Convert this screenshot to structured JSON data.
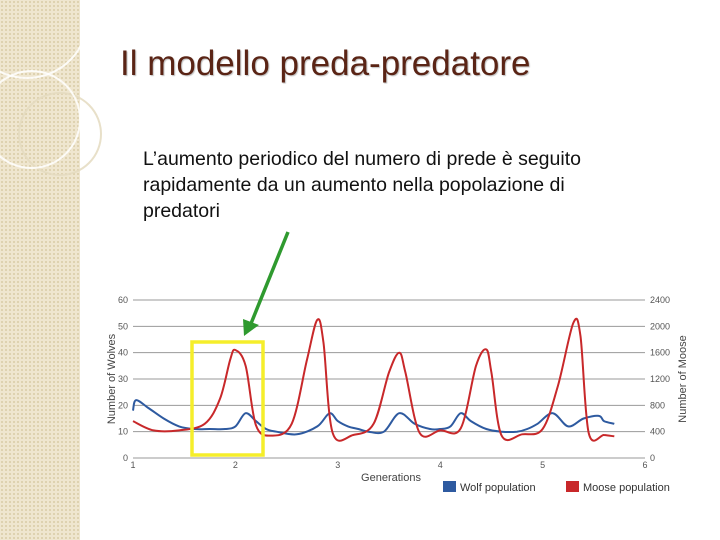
{
  "slide": {
    "title": "Il modello preda-predatore",
    "text": "L’aumento periodico del numero di prede è seguito rapidamente da un aumento nella popolazione di predatori"
  },
  "colors": {
    "wolf": "#2e5aa0",
    "moose": "#c8282a",
    "highlight": "#f5ee2a",
    "arrow": "#2f9a2f",
    "title": "#5a2415"
  },
  "chart_data": {
    "type": "line",
    "xlabel": "Generations",
    "ylabel_left": "Number of Wolves",
    "ylabel_right": "Number of Moose",
    "xlim": [
      1,
      6
    ],
    "ylim_left": [
      0,
      60
    ],
    "ylim_right": [
      0,
      2400
    ],
    "x_ticks": [
      "1",
      "2",
      "3",
      "4",
      "5",
      "6"
    ],
    "y_ticks_left": [
      "0",
      "10",
      "20",
      "30",
      "40",
      "50",
      "60"
    ],
    "y_ticks_right": [
      "0",
      "400",
      "800",
      "1200",
      "1600",
      "2000",
      "2400"
    ],
    "grid": true,
    "legend_position": "bottom-right",
    "series": [
      {
        "name": "Wolf population",
        "axis": "left",
        "x": [
          1.0,
          1.03,
          1.15,
          1.3,
          1.45,
          1.6,
          1.75,
          1.9,
          2.0,
          2.1,
          2.2,
          2.3,
          2.4,
          2.6,
          2.8,
          2.92,
          3.0,
          3.1,
          3.2,
          3.3,
          3.45,
          3.6,
          3.75,
          3.9,
          4.0,
          4.1,
          4.2,
          4.3,
          4.45,
          4.6,
          4.75,
          4.85,
          4.95,
          5.1,
          5.25,
          5.4,
          5.55,
          5.6,
          5.7
        ],
        "values": [
          18,
          22,
          19,
          15,
          12,
          11,
          11,
          11,
          12,
          17,
          14,
          11,
          10,
          9,
          12,
          17,
          14,
          12,
          11,
          10,
          10,
          17,
          13,
          11,
          11,
          12,
          17,
          14,
          11,
          10,
          10,
          11,
          13,
          17,
          12,
          15,
          16,
          14,
          13
        ]
      },
      {
        "name": "Moose population",
        "axis": "right",
        "x": [
          1.0,
          1.2,
          1.45,
          1.7,
          1.85,
          1.95,
          2.0,
          2.1,
          2.2,
          2.35,
          2.55,
          2.7,
          2.8,
          2.86,
          2.95,
          3.15,
          3.35,
          3.5,
          3.6,
          3.66,
          3.8,
          4.0,
          4.2,
          4.35,
          4.45,
          4.5,
          4.6,
          4.8,
          5.0,
          5.15,
          5.3,
          5.37,
          5.45,
          5.6,
          5.7
        ],
        "values": [
          560,
          420,
          420,
          520,
          900,
          1500,
          1640,
          1400,
          500,
          340,
          520,
          1500,
          2100,
          1750,
          380,
          350,
          520,
          1300,
          1600,
          1300,
          380,
          420,
          450,
          1400,
          1650,
          1300,
          340,
          360,
          440,
          1100,
          2050,
          1850,
          380,
          350,
          330
        ]
      }
    ]
  }
}
